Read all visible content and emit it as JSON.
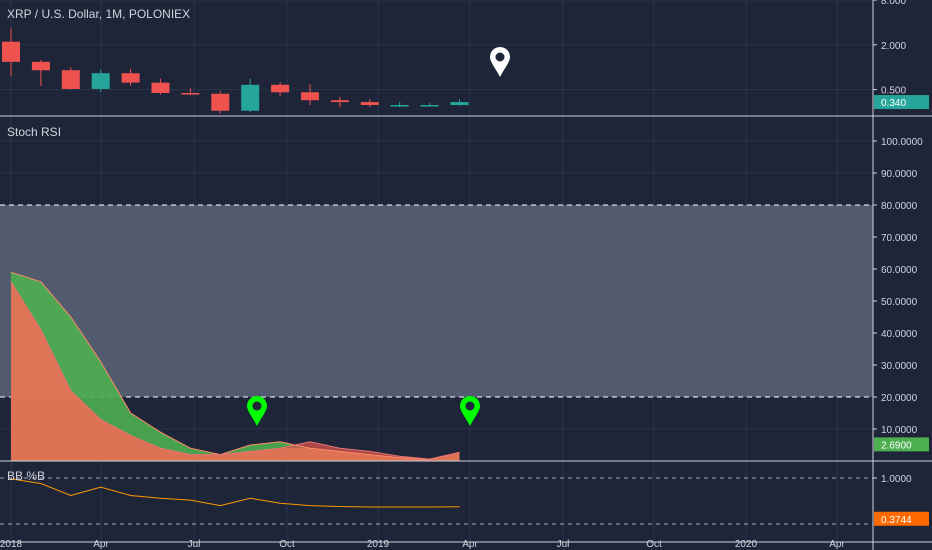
{
  "header": {
    "title": "XRP / U.S. Dollar, 1M, POLONIEX"
  },
  "colors": {
    "background": "#1e2539",
    "grid": "#2b3449",
    "up": "#26a69a",
    "down": "#ef5350",
    "k_fill": "#ff7b5a",
    "d_fill": "#4caf50",
    "band_fill": "#5c6578",
    "bb_line": "#ff9800",
    "marker_white": "#ffffff",
    "marker_green": "#00ff00",
    "stoch_badge": "#4caf50",
    "bb_badge": "#ff6a00",
    "price_badge": "#26a69a"
  },
  "x_axis": {
    "labels": [
      "2018",
      "Apr",
      "Jul",
      "Oct",
      "2019",
      "Apr",
      "Jul",
      "Oct",
      "2020",
      "Apr"
    ]
  },
  "price_axis": {
    "ticks": [
      "8.000",
      "2.000",
      "0.500"
    ],
    "last_price": "0.340"
  },
  "stoch_axis": {
    "ticks": [
      "100.0000",
      "90.0000",
      "80.0000",
      "70.0000",
      "60.0000",
      "50.0000",
      "40.0000",
      "30.0000",
      "20.0000",
      "10.0000"
    ],
    "last": "2.6900"
  },
  "bb_axis": {
    "ticks": [
      "1.0000"
    ],
    "last": "0.3744"
  },
  "panes": {
    "stoch_title": "Stoch RSI",
    "bb_title": "BB %B"
  },
  "chart_data": [
    {
      "type": "candlestick",
      "title": "XRP / U.S. Dollar, 1M, POLONIEX",
      "scale": "log",
      "x": [
        "2018-01",
        "2018-02",
        "2018-03",
        "2018-04",
        "2018-05",
        "2018-06",
        "2018-07",
        "2018-08",
        "2018-09",
        "2018-10",
        "2018-11",
        "2018-12",
        "2019-01",
        "2019-02",
        "2019-03",
        "2019-04"
      ],
      "open": [
        2.2,
        1.18,
        0.91,
        0.51,
        0.83,
        0.62,
        0.45,
        0.44,
        0.26,
        0.58,
        0.46,
        0.36,
        0.34,
        0.31,
        0.31,
        0.31
      ],
      "high": [
        3.3,
        1.25,
        1.0,
        0.92,
        0.95,
        0.7,
        0.52,
        0.48,
        0.7,
        0.63,
        0.59,
        0.4,
        0.37,
        0.34,
        0.33,
        0.37
      ],
      "low": [
        0.75,
        0.56,
        0.5,
        0.47,
        0.56,
        0.43,
        0.42,
        0.24,
        0.25,
        0.41,
        0.31,
        0.29,
        0.29,
        0.29,
        0.3,
        0.3
      ],
      "close": [
        1.18,
        0.91,
        0.51,
        0.83,
        0.62,
        0.45,
        0.44,
        0.26,
        0.58,
        0.46,
        0.36,
        0.34,
        0.31,
        0.31,
        0.31,
        0.34
      ],
      "ylim": [
        0.25,
        8
      ]
    },
    {
      "type": "area",
      "title": "Stoch RSI",
      "x": [
        "2018-01",
        "2018-02",
        "2018-03",
        "2018-04",
        "2018-05",
        "2018-06",
        "2018-07",
        "2018-08",
        "2018-09",
        "2018-10",
        "2018-11",
        "2018-12",
        "2019-01",
        "2019-02",
        "2019-03",
        "2019-04"
      ],
      "series": [
        {
          "values": [
            59,
            56,
            45,
            31,
            15,
            9,
            4,
            2,
            5,
            6,
            4,
            3,
            2,
            1,
            0.5,
            2.69
          ]
        },
        {
          "values": [
            56,
            41,
            22,
            13,
            8,
            4,
            2,
            2,
            3,
            4,
            6,
            4,
            3,
            1.5,
            0.6,
            2.69
          ]
        }
      ],
      "bands": [
        20,
        80
      ],
      "ylim": [
        0,
        100
      ]
    },
    {
      "type": "line",
      "title": "BB %B",
      "x": [
        "2018-01",
        "2018-02",
        "2018-03",
        "2018-04",
        "2018-05",
        "2018-06",
        "2018-07",
        "2018-08",
        "2018-09",
        "2018-10",
        "2018-11",
        "2018-12",
        "2019-01",
        "2019-02",
        "2019-03",
        "2019-04"
      ],
      "values": [
        0.98,
        0.88,
        0.62,
        0.8,
        0.62,
        0.56,
        0.52,
        0.4,
        0.56,
        0.45,
        0.4,
        0.38,
        0.37,
        0.37,
        0.37,
        0.374
      ],
      "bands": [
        0,
        1
      ],
      "ylim": [
        -0.1,
        1.2
      ]
    }
  ]
}
